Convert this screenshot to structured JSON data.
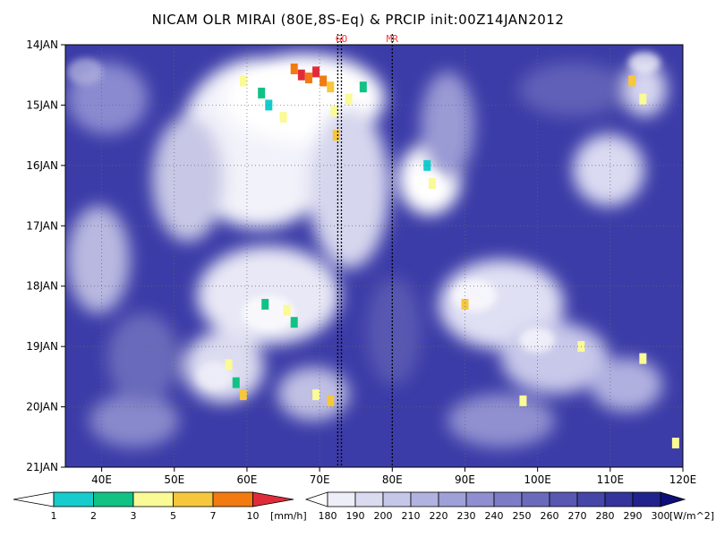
{
  "chart_data": {
    "type": "heatmap",
    "title": "NICAM OLR MIRAI (80E,8S-Eq) & PRCIP init:00Z14JAN2012",
    "x_axis": {
      "range": [
        35,
        120
      ],
      "tick_values": [
        40,
        50,
        60,
        70,
        80,
        90,
        100,
        110,
        120
      ],
      "tick_labels": [
        "40E",
        "50E",
        "60E",
        "70E",
        "80E",
        "90E",
        "100E",
        "110E",
        "120E"
      ]
    },
    "y_axis": {
      "range": [
        "14JAN",
        "21JAN"
      ],
      "tick_labels": [
        "14JAN",
        "15JAN",
        "16JAN",
        "17JAN",
        "18JAN",
        "19JAN",
        "20JAN",
        "21JAN"
      ],
      "inverted": true
    },
    "grid": true,
    "markers": [
      {
        "label": "GO",
        "x": 72.5
      },
      {
        "label": "GO",
        "x": 73.0
      },
      {
        "label": "MR",
        "x": 80.0
      }
    ],
    "marker_labels": [
      {
        "text": "GO",
        "x": 73.0
      },
      {
        "text": "MR",
        "x": 80.0
      }
    ],
    "precip_colorbar": {
      "levels": [
        "1",
        "2",
        "3",
        "5",
        "7",
        "10"
      ],
      "unit": "[mm/h]",
      "colors": [
        "#ffffff",
        "#16cccc",
        "#11c285",
        "#fafa96",
        "#f6c63c",
        "#f27a10",
        "#e02c3a"
      ]
    },
    "olr_colorbar": {
      "levels": [
        "180",
        "190",
        "200",
        "210",
        "220",
        "230",
        "240",
        "250",
        "260",
        "270",
        "280",
        "290",
        "300"
      ],
      "unit": "[W/m^2]",
      "colors": [
        "#ffffff",
        "#eeeef8",
        "#dadaf0",
        "#c6c6e8",
        "#b2b2e0",
        "#a0a0d8",
        "#8e8ed0",
        "#7c7cc6",
        "#6a6abc",
        "#5858b2",
        "#4646a8",
        "#34349c",
        "#22228e",
        "#0e0e7a"
      ]
    },
    "precip_cells": [
      {
        "lon": 59.5,
        "day": 0.6,
        "value": 3
      },
      {
        "lon": 62.0,
        "day": 0.8,
        "value": 2
      },
      {
        "lon": 66.5,
        "day": 0.4,
        "value": 7
      },
      {
        "lon": 67.5,
        "day": 0.5,
        "value": 10
      },
      {
        "lon": 68.5,
        "day": 0.55,
        "value": 7
      },
      {
        "lon": 69.5,
        "day": 0.45,
        "value": 10
      },
      {
        "lon": 70.5,
        "day": 0.6,
        "value": 7
      },
      {
        "lon": 71.5,
        "day": 0.7,
        "value": 5
      },
      {
        "lon": 72.0,
        "day": 1.1,
        "value": 3
      },
      {
        "lon": 72.3,
        "day": 1.5,
        "value": 5
      },
      {
        "lon": 74.0,
        "day": 0.9,
        "value": 3
      },
      {
        "lon": 76.0,
        "day": 0.7,
        "value": 2
      },
      {
        "lon": 65.0,
        "day": 1.2,
        "value": 3
      },
      {
        "lon": 63.0,
        "day": 1.0,
        "value": 1
      },
      {
        "lon": 85.5,
        "day": 2.3,
        "value": 3
      },
      {
        "lon": 84.8,
        "day": 2.0,
        "value": 1
      },
      {
        "lon": 113.0,
        "day": 0.6,
        "value": 5
      },
      {
        "lon": 114.5,
        "day": 0.9,
        "value": 3
      },
      {
        "lon": 62.5,
        "day": 4.3,
        "value": 2
      },
      {
        "lon": 65.5,
        "day": 4.4,
        "value": 3
      },
      {
        "lon": 66.5,
        "day": 4.6,
        "value": 2
      },
      {
        "lon": 57.5,
        "day": 5.3,
        "value": 3
      },
      {
        "lon": 58.5,
        "day": 5.6,
        "value": 2
      },
      {
        "lon": 59.5,
        "day": 5.8,
        "value": 5
      },
      {
        "lon": 69.5,
        "day": 5.8,
        "value": 3
      },
      {
        "lon": 71.5,
        "day": 5.9,
        "value": 5
      },
      {
        "lon": 90.0,
        "day": 4.3,
        "value": 5
      },
      {
        "lon": 98.0,
        "day": 5.9,
        "value": 3
      },
      {
        "lon": 106.0,
        "day": 5.0,
        "value": 3
      },
      {
        "lon": 114.5,
        "day": 5.2,
        "value": 3
      },
      {
        "lon": 119.0,
        "day": 6.6,
        "value": 3
      }
    ]
  }
}
